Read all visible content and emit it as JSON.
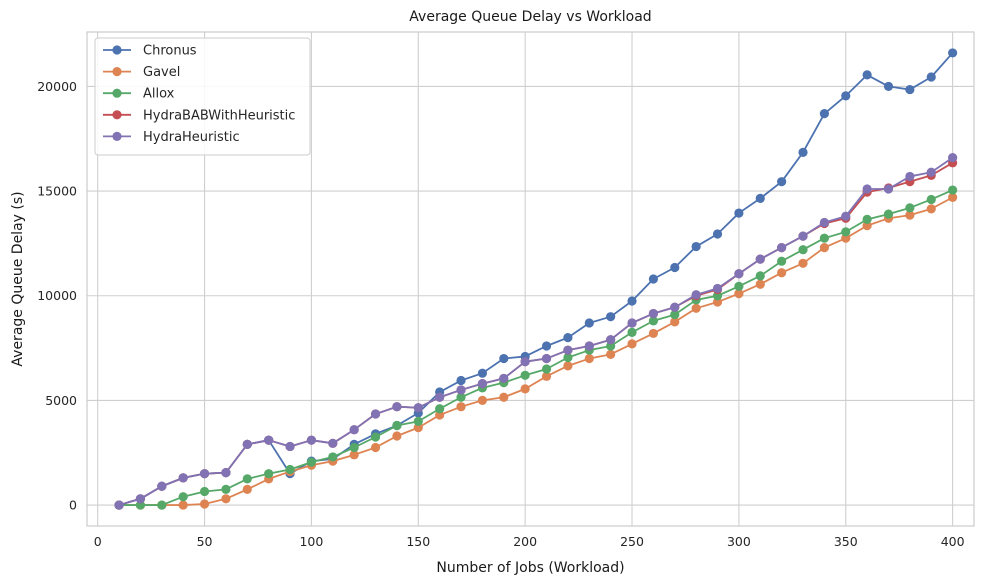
{
  "chart_data": {
    "type": "line",
    "title": "Average Queue Delay vs Workload",
    "xlabel": "Number of Jobs (Workload)",
    "ylabel": "Average Queue Delay (s)",
    "xlim": [
      -5,
      410
    ],
    "ylim": [
      -1000,
      22600
    ],
    "xticks": [
      0,
      50,
      100,
      150,
      200,
      250,
      300,
      350,
      400
    ],
    "yticks": [
      0,
      5000,
      10000,
      15000,
      20000
    ],
    "grid": true,
    "legend_position": "top-left",
    "x": [
      10,
      20,
      30,
      40,
      50,
      60,
      70,
      80,
      90,
      100,
      110,
      120,
      130,
      140,
      150,
      160,
      170,
      180,
      190,
      200,
      210,
      220,
      230,
      240,
      250,
      260,
      270,
      280,
      290,
      300,
      310,
      320,
      330,
      340,
      350,
      360,
      370,
      380,
      390,
      400
    ],
    "series": [
      {
        "name": "Chronus",
        "color": "#4c72b0",
        "values": [
          0,
          300,
          900,
          1300,
          1500,
          1550,
          2900,
          3100,
          1500,
          2100,
          2200,
          2900,
          3400,
          3800,
          4400,
          5400,
          5950,
          6300,
          7000,
          7100,
          7600,
          8000,
          8700,
          9000,
          9750,
          10800,
          11350,
          12350,
          12950,
          13950,
          14650,
          15450,
          16850,
          18700,
          19550,
          20550,
          20000,
          19850,
          20450,
          21600
        ]
      },
      {
        "name": "Gavel",
        "color": "#dd8452",
        "values": [
          0,
          0,
          0,
          0,
          50,
          300,
          750,
          1250,
          1600,
          1900,
          2100,
          2400,
          2750,
          3300,
          3700,
          4300,
          4700,
          5000,
          5150,
          5550,
          6150,
          6650,
          7000,
          7200,
          7700,
          8200,
          8750,
          9400,
          9700,
          10100,
          10550,
          11100,
          11550,
          12300,
          12750,
          13350,
          13700,
          13850,
          14150,
          14700
        ]
      },
      {
        "name": "Allox",
        "color": "#55a868",
        "values": [
          0,
          0,
          0,
          400,
          650,
          750,
          1250,
          1500,
          1700,
          2050,
          2300,
          2750,
          3250,
          3800,
          4000,
          4600,
          5150,
          5600,
          5850,
          6200,
          6500,
          7050,
          7400,
          7600,
          8250,
          8800,
          9100,
          9800,
          10000,
          10450,
          10950,
          11650,
          12200,
          12750,
          13050,
          13650,
          13900,
          14200,
          14600,
          15050
        ]
      },
      {
        "name": "HydraBABWithHeuristic",
        "color": "#c44e52",
        "values": [
          0,
          300,
          900,
          1300,
          1500,
          1550,
          2900,
          3100,
          2800,
          3100,
          2950,
          3600,
          4350,
          4700,
          4650,
          5150,
          5500,
          5800,
          6050,
          6850,
          7000,
          7400,
          7600,
          7900,
          8700,
          9150,
          9450,
          10000,
          10300,
          11050,
          11750,
          12300,
          12850,
          13450,
          13700,
          14950,
          15150,
          15450,
          15750,
          16350
        ]
      },
      {
        "name": "HydraHeuristic",
        "color": "#8172b3",
        "values": [
          0,
          300,
          900,
          1300,
          1500,
          1550,
          2900,
          3100,
          2800,
          3100,
          2950,
          3600,
          4350,
          4700,
          4650,
          5150,
          5500,
          5800,
          6050,
          6850,
          7000,
          7400,
          7600,
          7900,
          8700,
          9150,
          9450,
          10050,
          10350,
          11050,
          11750,
          12300,
          12850,
          13500,
          13800,
          15100,
          15100,
          15700,
          15900,
          16600
        ]
      }
    ]
  }
}
